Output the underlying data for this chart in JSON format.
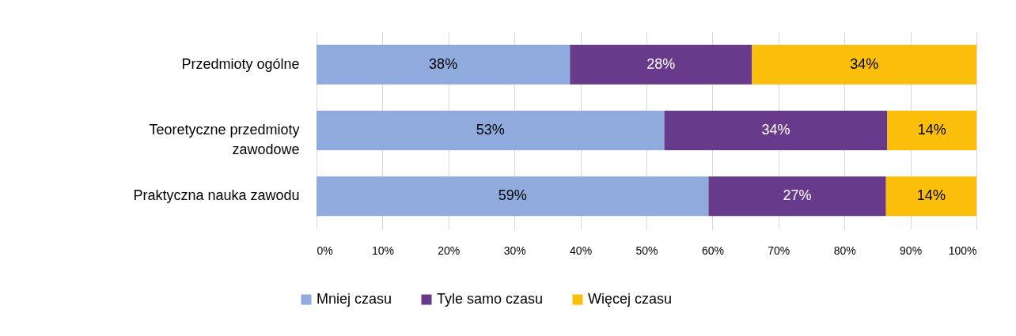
{
  "chart_data": {
    "type": "bar",
    "orientation": "horizontal",
    "stacked": true,
    "categories": [
      "Przedmioty ogólne",
      "Teoretyczne przedmioty zawodowe",
      "Praktyczna nauka zawodu"
    ],
    "series": [
      {
        "name": "Mniej czasu",
        "color": "#8faadc",
        "values": [
          38.4,
          52.7,
          59.4
        ],
        "value_labels": [
          "38%",
          "53%",
          "59%"
        ]
      },
      {
        "name": "Tyle samo czasu",
        "color": "#673a8b",
        "values": [
          27.6,
          33.8,
          26.9
        ],
        "value_labels": [
          "28%",
          "34%",
          "27%"
        ]
      },
      {
        "name": "Więcej czasu",
        "color": "#fbbf0b",
        "values": [
          34.0,
          13.5,
          13.7
        ],
        "value_labels": [
          "34%",
          "14%",
          "14%"
        ]
      }
    ],
    "xlim": [
      0,
      100
    ],
    "xticks": [
      {
        "value": 0,
        "label": "0%"
      },
      {
        "value": 10,
        "label": "10%"
      },
      {
        "value": 20,
        "label": "20%"
      },
      {
        "value": 30,
        "label": "30%"
      },
      {
        "value": 40,
        "label": "40%"
      },
      {
        "value": 50,
        "label": "50%"
      },
      {
        "value": 60,
        "label": "60%"
      },
      {
        "value": 70,
        "label": "70%"
      },
      {
        "value": 80,
        "label": "80%"
      },
      {
        "value": 90,
        "label": "90%"
      },
      {
        "value": 100,
        "label": "100%"
      }
    ],
    "grid": "x",
    "legend": "bottom"
  }
}
